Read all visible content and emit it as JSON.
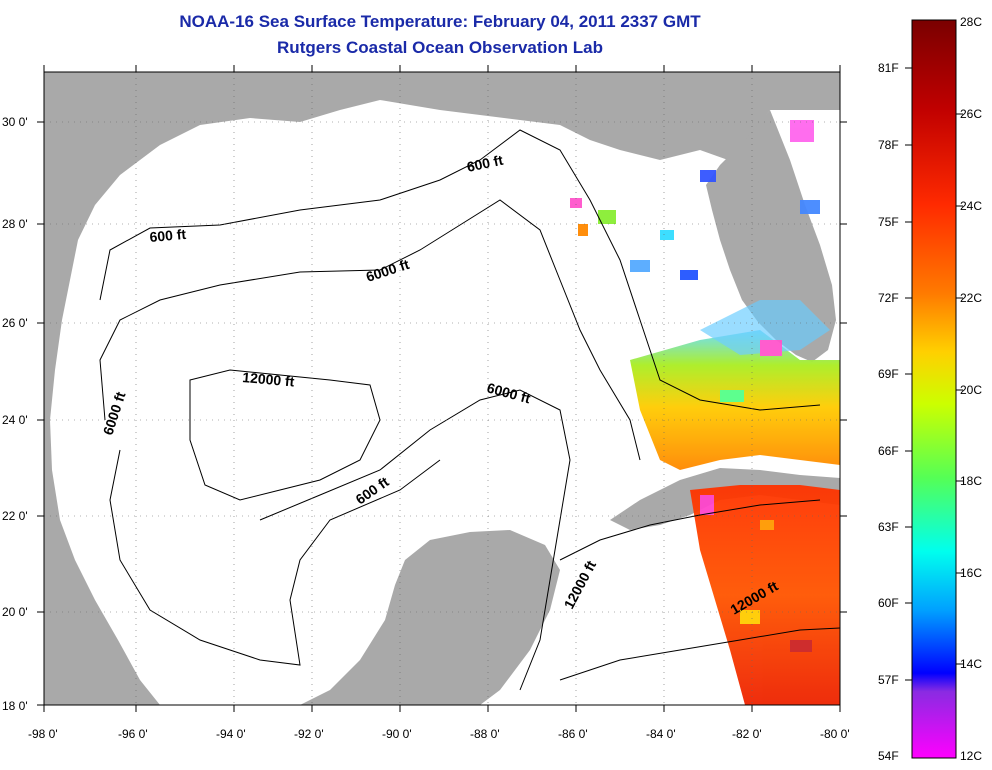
{
  "header": {
    "title": "NOAA-16 Sea Surface Temperature:  February 04, 2011 2337 GMT",
    "subtitle": "Rutgers Coastal Ocean Observation Lab"
  },
  "map": {
    "lon_labels": [
      "-98 0'",
      "-96 0'",
      "-94 0'",
      "-92 0'",
      "-90 0'",
      "-88 0'",
      "-86 0'",
      "-84 0'",
      "-82 0'",
      "-80 0'"
    ],
    "lat_labels": [
      "30 0'",
      "28 0'",
      "26 0'",
      "24 0'",
      "22 0'",
      "20 0'",
      "18 0'"
    ],
    "contour_labels": [
      "600 ft",
      "600 ft",
      "6000 ft",
      "12000 ft",
      "6000 ft",
      "6000 ft",
      "600 ft",
      "12000 ft",
      "12000 ft"
    ],
    "colors": {
      "land": "#a9a9a9",
      "water": "#ffffff"
    }
  },
  "colorbar": {
    "fahrenheit_labels": [
      "81F",
      "78F",
      "75F",
      "72F",
      "69F",
      "66F",
      "63F",
      "60F",
      "57F",
      "54F"
    ],
    "celsius_labels": [
      "28C",
      "26C",
      "24C",
      "22C",
      "20C",
      "18C",
      "16C",
      "14C",
      "12C"
    ],
    "gradient": [
      "#7a0000",
      "#c00000",
      "#ff2a00",
      "#ff7a00",
      "#ffd000",
      "#ccff00",
      "#55ff55",
      "#00ffee",
      "#00a0ff",
      "#0030ff",
      "#0000ff",
      "#8a2be2",
      "#ff00ff"
    ]
  }
}
